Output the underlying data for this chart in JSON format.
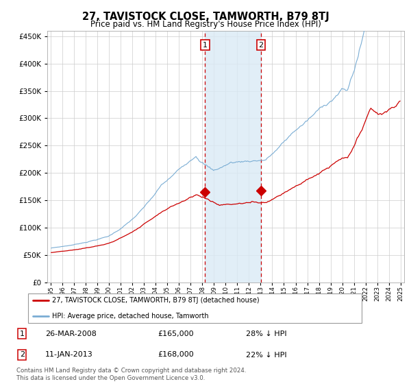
{
  "title": "27, TAVISTOCK CLOSE, TAMWORTH, B79 8TJ",
  "subtitle": "Price paid vs. HM Land Registry's House Price Index (HPI)",
  "title_fontsize": 10.5,
  "subtitle_fontsize": 8.5,
  "background_color": "#ffffff",
  "grid_color": "#cccccc",
  "red_line_color": "#cc0000",
  "blue_line_color": "#7aadd4",
  "sale1_date_num": 2008.23,
  "sale2_date_num": 2013.03,
  "sale1_price": 165000,
  "sale2_price": 168000,
  "sale1_label": "1",
  "sale2_label": "2",
  "sale1_text": "26-MAR-2008",
  "sale2_text": "11-JAN-2013",
  "legend1": "27, TAVISTOCK CLOSE, TAMWORTH, B79 8TJ (detached house)",
  "legend2": "HPI: Average price, detached house, Tamworth",
  "footnote": "Contains HM Land Registry data © Crown copyright and database right 2024.\nThis data is licensed under the Open Government Licence v3.0.",
  "ylim": [
    0,
    460000
  ],
  "yticks": [
    0,
    50000,
    100000,
    150000,
    200000,
    250000,
    300000,
    350000,
    400000,
    450000
  ],
  "xstart": 1995,
  "xend": 2025
}
